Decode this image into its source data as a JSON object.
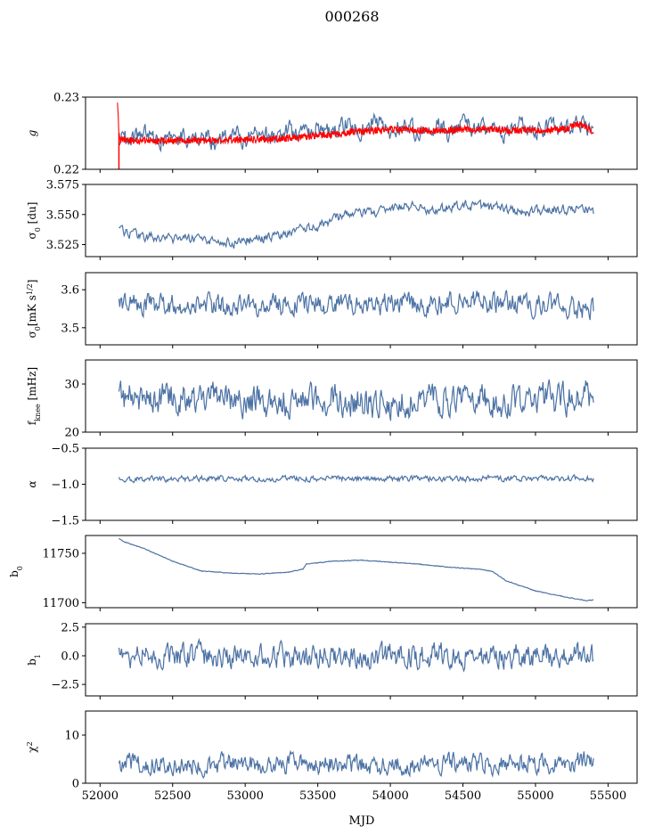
{
  "title": "000268",
  "xlabel": "MJD",
  "colors": {
    "series": "#4c72a4",
    "accent": "#ff0000",
    "axis": "#000000"
  },
  "chart_data": [
    {
      "type": "line",
      "ylabel": "g",
      "ylim": [
        0.22,
        0.23
      ],
      "yticks": [
        0.22,
        0.23
      ],
      "ytick_labels": [
        "0.22",
        "0.23"
      ],
      "xlim": [
        51900,
        55700
      ],
      "xticks": [
        52000,
        52500,
        53000,
        53500,
        54000,
        54500,
        55000,
        55500
      ],
      "series": [
        {
          "color": "#4c72a4",
          "x": [
            52130,
            52200,
            52300,
            52400,
            52500,
            52600,
            52700,
            52800,
            52900,
            53000,
            53100,
            53200,
            53300,
            53400,
            53500,
            53600,
            53700,
            53800,
            53900,
            54000,
            54100,
            54200,
            54300,
            54400,
            54500,
            54600,
            54700,
            54800,
            54900,
            55000,
            55100,
            55200,
            55300,
            55400
          ],
          "y": [
            0.2245,
            0.2238,
            0.225,
            0.2237,
            0.2252,
            0.224,
            0.2248,
            0.2236,
            0.2253,
            0.2241,
            0.225,
            0.2243,
            0.2255,
            0.2246,
            0.2258,
            0.2249,
            0.2264,
            0.2252,
            0.2266,
            0.2254,
            0.2261,
            0.2251,
            0.2263,
            0.225,
            0.2262,
            0.2252,
            0.2258,
            0.2249,
            0.2264,
            0.2253,
            0.2262,
            0.2255,
            0.2266,
            0.2252
          ],
          "amplitude": 0.0011
        },
        {
          "color": "#ff0000",
          "x": [
            52120,
            52130,
            52140,
            52200,
            52400,
            52600,
            52800,
            53000,
            53200,
            53400,
            53600,
            53800,
            54000,
            54200,
            54400,
            54600,
            54800,
            55000,
            55200,
            55300,
            55350,
            55400
          ],
          "y": [
            0.2295,
            0.225,
            0.2241,
            0.224,
            0.224,
            0.224,
            0.224,
            0.2241,
            0.2242,
            0.2245,
            0.2249,
            0.2253,
            0.2255,
            0.2254,
            0.2254,
            0.2256,
            0.2254,
            0.2254,
            0.2256,
            0.2262,
            0.2258,
            0.2253
          ],
          "amplitude": 0.0005,
          "spike": {
            "x": 52130,
            "y_min": 0.22
          }
        }
      ]
    },
    {
      "type": "line",
      "ylabel": "σ0 [du]",
      "ylim": [
        3.515,
        3.575
      ],
      "yticks": [
        3.525,
        3.55,
        3.575
      ],
      "ytick_labels": [
        "3.525",
        "3.550",
        "3.575"
      ],
      "xlim": [
        51900,
        55700
      ],
      "series": [
        {
          "color": "#4c72a4",
          "x": [
            52130,
            52300,
            52500,
            52700,
            52900,
            53100,
            53300,
            53500,
            53600,
            53700,
            53900,
            54100,
            54300,
            54500,
            54700,
            54900,
            55100,
            55300,
            55400
          ],
          "y": [
            3.537,
            3.531,
            3.53,
            3.53,
            3.526,
            3.53,
            3.535,
            3.54,
            3.546,
            3.55,
            3.552,
            3.557,
            3.553,
            3.558,
            3.556,
            3.552,
            3.553,
            3.556,
            3.553
          ],
          "amplitude": 0.0035
        }
      ]
    },
    {
      "type": "line",
      "ylabel": "σ0[mK s^1/2]",
      "ylim": [
        3.455,
        3.645
      ],
      "yticks": [
        3.5,
        3.6
      ],
      "ytick_labels": [
        "3.5",
        "3.6"
      ],
      "xlim": [
        51900,
        55700
      ],
      "series": [
        {
          "color": "#4c72a4",
          "x": [
            52130,
            52400,
            52700,
            53000,
            53300,
            53600,
            53900,
            54200,
            54500,
            54800,
            55100,
            55400
          ],
          "y": [
            3.568,
            3.562,
            3.56,
            3.555,
            3.558,
            3.565,
            3.562,
            3.56,
            3.565,
            3.565,
            3.558,
            3.545
          ],
          "amplitude": 0.025
        }
      ]
    },
    {
      "type": "line",
      "ylabel": "f_knee [mHz]",
      "ylim": [
        20,
        35
      ],
      "yticks": [
        20,
        30
      ],
      "ytick_labels": [
        "20",
        "30"
      ],
      "xlim": [
        51900,
        55700
      ],
      "series": [
        {
          "color": "#4c72a4",
          "x": [
            52130,
            52400,
            52700,
            53000,
            53300,
            53600,
            53900,
            54200,
            54500,
            54800,
            55100,
            55400
          ],
          "y": [
            27.0,
            27.5,
            27.0,
            26.5,
            26.5,
            27.0,
            26.0,
            26.5,
            27.0,
            26.5,
            27.0,
            28.0
          ],
          "amplitude": 2.8
        }
      ]
    },
    {
      "type": "line",
      "ylabel": "α",
      "ylim": [
        -1.5,
        -0.5
      ],
      "yticks": [
        -1.5,
        -1.0,
        -0.5
      ],
      "ytick_labels": [
        "−1.5",
        "−1.0",
        "−0.5"
      ],
      "xlim": [
        51900,
        55700
      ],
      "series": [
        {
          "color": "#4c72a4",
          "x": [
            52130,
            52800,
            53500,
            54200,
            54900,
            55400
          ],
          "y": [
            -0.93,
            -0.92,
            -0.92,
            -0.92,
            -0.92,
            -0.92
          ],
          "amplitude": 0.035
        }
      ]
    },
    {
      "type": "line",
      "ylabel": "b0",
      "ylim": [
        11695,
        11768
      ],
      "yticks": [
        11700,
        11750
      ],
      "ytick_labels": [
        "11700",
        "11750"
      ],
      "xlim": [
        51900,
        55700
      ],
      "series": [
        {
          "color": "#4c72a4",
          "x": [
            52130,
            52160,
            52300,
            52500,
            52700,
            52900,
            53100,
            53300,
            53400,
            53420,
            53600,
            53800,
            54000,
            54200,
            54400,
            54600,
            54700,
            54800,
            55000,
            55200,
            55350,
            55400
          ],
          "y": [
            11765,
            11762,
            11755,
            11742,
            11732,
            11730,
            11729,
            11731,
            11734,
            11739,
            11742,
            11743,
            11741,
            11739,
            11736,
            11734,
            11732,
            11722,
            11712,
            11706,
            11702,
            11703
          ],
          "amplitude": 0.7
        }
      ]
    },
    {
      "type": "line",
      "ylabel": "b1",
      "ylim": [
        -3.5,
        2.8
      ],
      "yticks": [
        -2.5,
        0.0,
        2.5
      ],
      "ytick_labels": [
        "−2.5",
        "0.0",
        "2.5"
      ],
      "xlim": [
        51900,
        55700
      ],
      "series": [
        {
          "color": "#4c72a4",
          "x": [
            52130,
            53000,
            54000,
            55000,
            55400
          ],
          "y": [
            0.0,
            0.0,
            0.0,
            0.0,
            0.0
          ],
          "amplitude": 0.9
        }
      ]
    },
    {
      "type": "line",
      "ylabel": "χ2",
      "ylim": [
        0,
        15
      ],
      "yticks": [
        0,
        10
      ],
      "ytick_labels": [
        "0",
        "10"
      ],
      "xlim": [
        51900,
        55700
      ],
      "xticks": [
        52000,
        52500,
        53000,
        53500,
        54000,
        54500,
        55000,
        55500
      ],
      "xtick_labels": [
        "52000",
        "52500",
        "53000",
        "53500",
        "54000",
        "54500",
        "55000",
        "55500"
      ],
      "series": [
        {
          "color": "#4c72a4",
          "x": [
            52130,
            52400,
            52700,
            53000,
            53300,
            53600,
            53900,
            54200,
            54500,
            54800,
            55100,
            55400
          ],
          "y": [
            4.0,
            4.2,
            3.8,
            4.0,
            4.2,
            4.0,
            3.8,
            4.0,
            4.2,
            4.0,
            4.2,
            4.5
          ],
          "amplitude": 1.8
        }
      ]
    }
  ]
}
